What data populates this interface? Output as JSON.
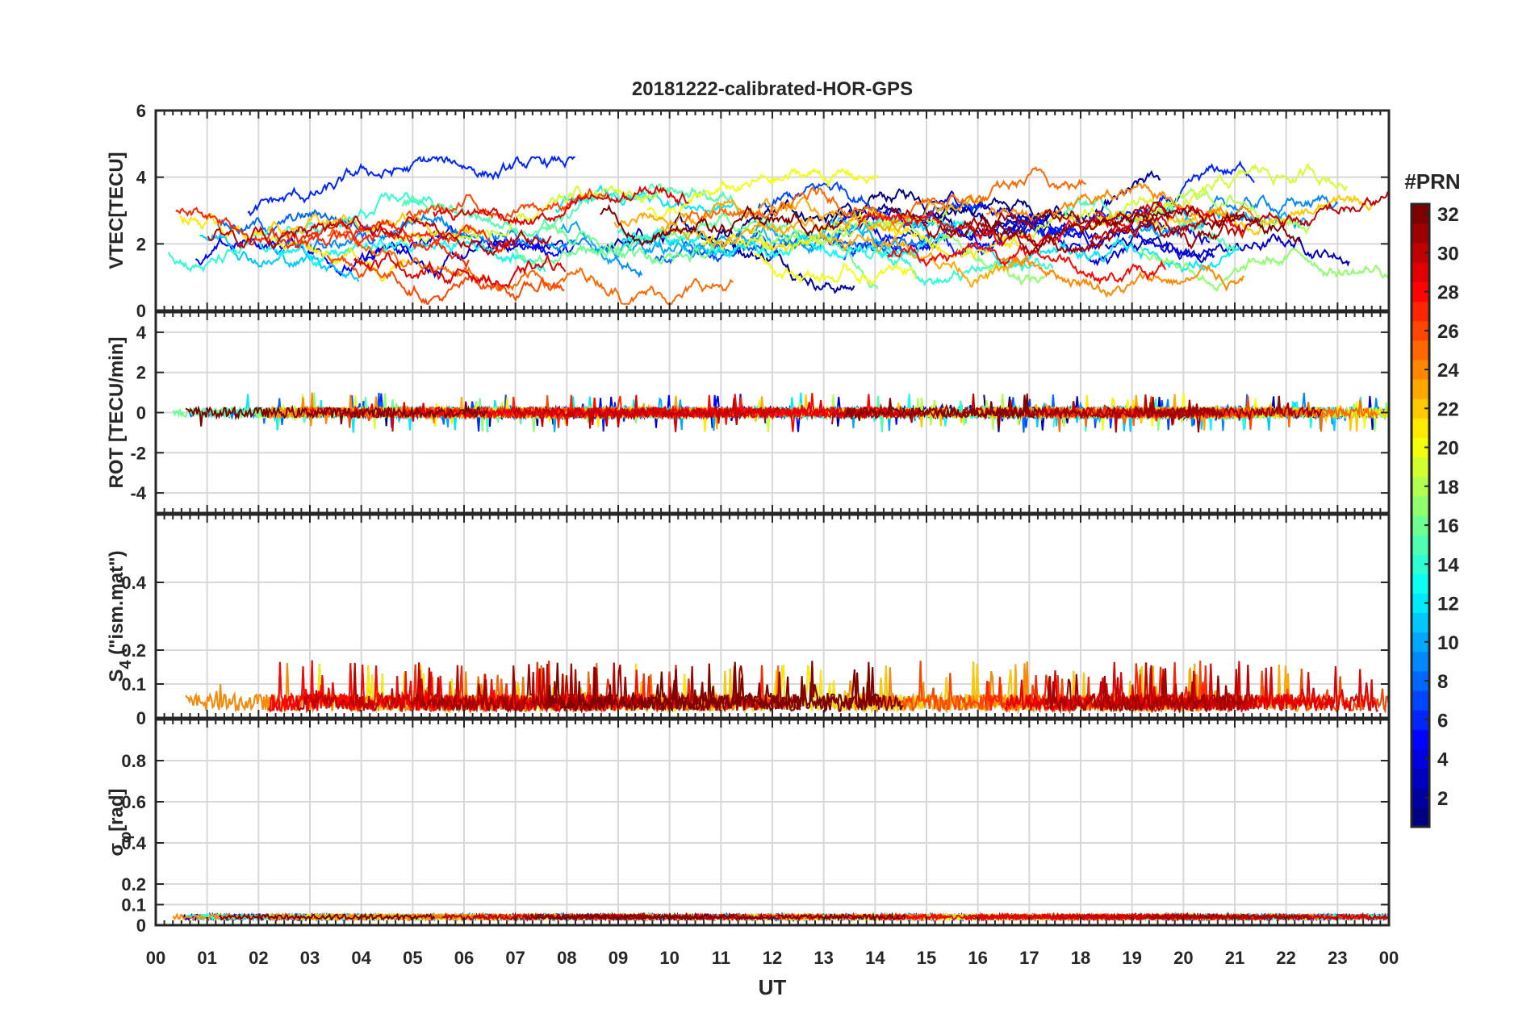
{
  "chart_data": {
    "type": "line",
    "title": "20181222-calibrated-HOR-GPS",
    "xlabel": "UT",
    "x_tick_labels": [
      "00",
      "01",
      "02",
      "03",
      "04",
      "05",
      "06",
      "07",
      "08",
      "09",
      "10",
      "11",
      "12",
      "13",
      "14",
      "15",
      "16",
      "17",
      "18",
      "19",
      "20",
      "21",
      "22",
      "23",
      "00"
    ],
    "xlim": [
      0,
      24
    ],
    "grid": true,
    "panels": [
      {
        "id": "vtec",
        "ylabel": "VTEC[TECU]",
        "ylim": [
          0,
          6
        ],
        "yticks": [
          0,
          2,
          4,
          6
        ],
        "ytick_labels": [
          "0",
          "2",
          "4",
          "6"
        ],
        "baseline": 2.3,
        "spread": 0.8,
        "noise": 0.12,
        "kind": "smooth"
      },
      {
        "id": "rot",
        "ylabel": "ROT [TECU/min]",
        "ylim": [
          -5,
          5
        ],
        "yticks": [
          -4,
          -2,
          0,
          2,
          4
        ],
        "ytick_labels": [
          "-4",
          "-2",
          "0",
          "2",
          "4"
        ],
        "baseline": 0,
        "spread": 0,
        "noise": 0.25,
        "kind": "noise"
      },
      {
        "id": "s4",
        "ylabel": "S",
        "ylabel_sub": "4",
        "ylabel_suffix": " (\"ism.mat\")",
        "ylim": [
          0,
          0.6
        ],
        "yticks": [
          0,
          0.1,
          0.2,
          0.4
        ],
        "ytick_labels": [
          "0",
          "0.1",
          "0.2",
          "0.4"
        ],
        "baseline": 0.04,
        "spread": 0.0,
        "noise": 0.05,
        "kind": "positive"
      },
      {
        "id": "sigma",
        "ylabel": "σ",
        "ylabel_sub": "φ",
        "ylabel_suffix": "[rad]",
        "ylim": [
          0,
          1
        ],
        "yticks": [
          0,
          0.1,
          0.2,
          0.4,
          0.6,
          0.8
        ],
        "ytick_labels": [
          "0",
          "0.1",
          "0.2",
          "0.4",
          "0.6",
          "0.8"
        ],
        "baseline": 0.04,
        "spread": 0.0,
        "noise": 0.012,
        "kind": "positive"
      }
    ],
    "colorbar": {
      "label": "#PRN",
      "range": [
        1,
        32
      ],
      "tick_labels": [
        "2",
        "4",
        "6",
        "8",
        "10",
        "12",
        "14",
        "16",
        "18",
        "20",
        "22",
        "24",
        "26",
        "28",
        "30",
        "32"
      ],
      "colormap": "jet"
    },
    "series_prn": [
      1,
      2,
      3,
      4,
      5,
      6,
      7,
      8,
      9,
      10,
      11,
      12,
      13,
      14,
      15,
      16,
      17,
      18,
      19,
      20,
      21,
      22,
      23,
      24,
      25,
      26,
      27,
      28,
      29,
      30,
      31,
      32
    ]
  }
}
